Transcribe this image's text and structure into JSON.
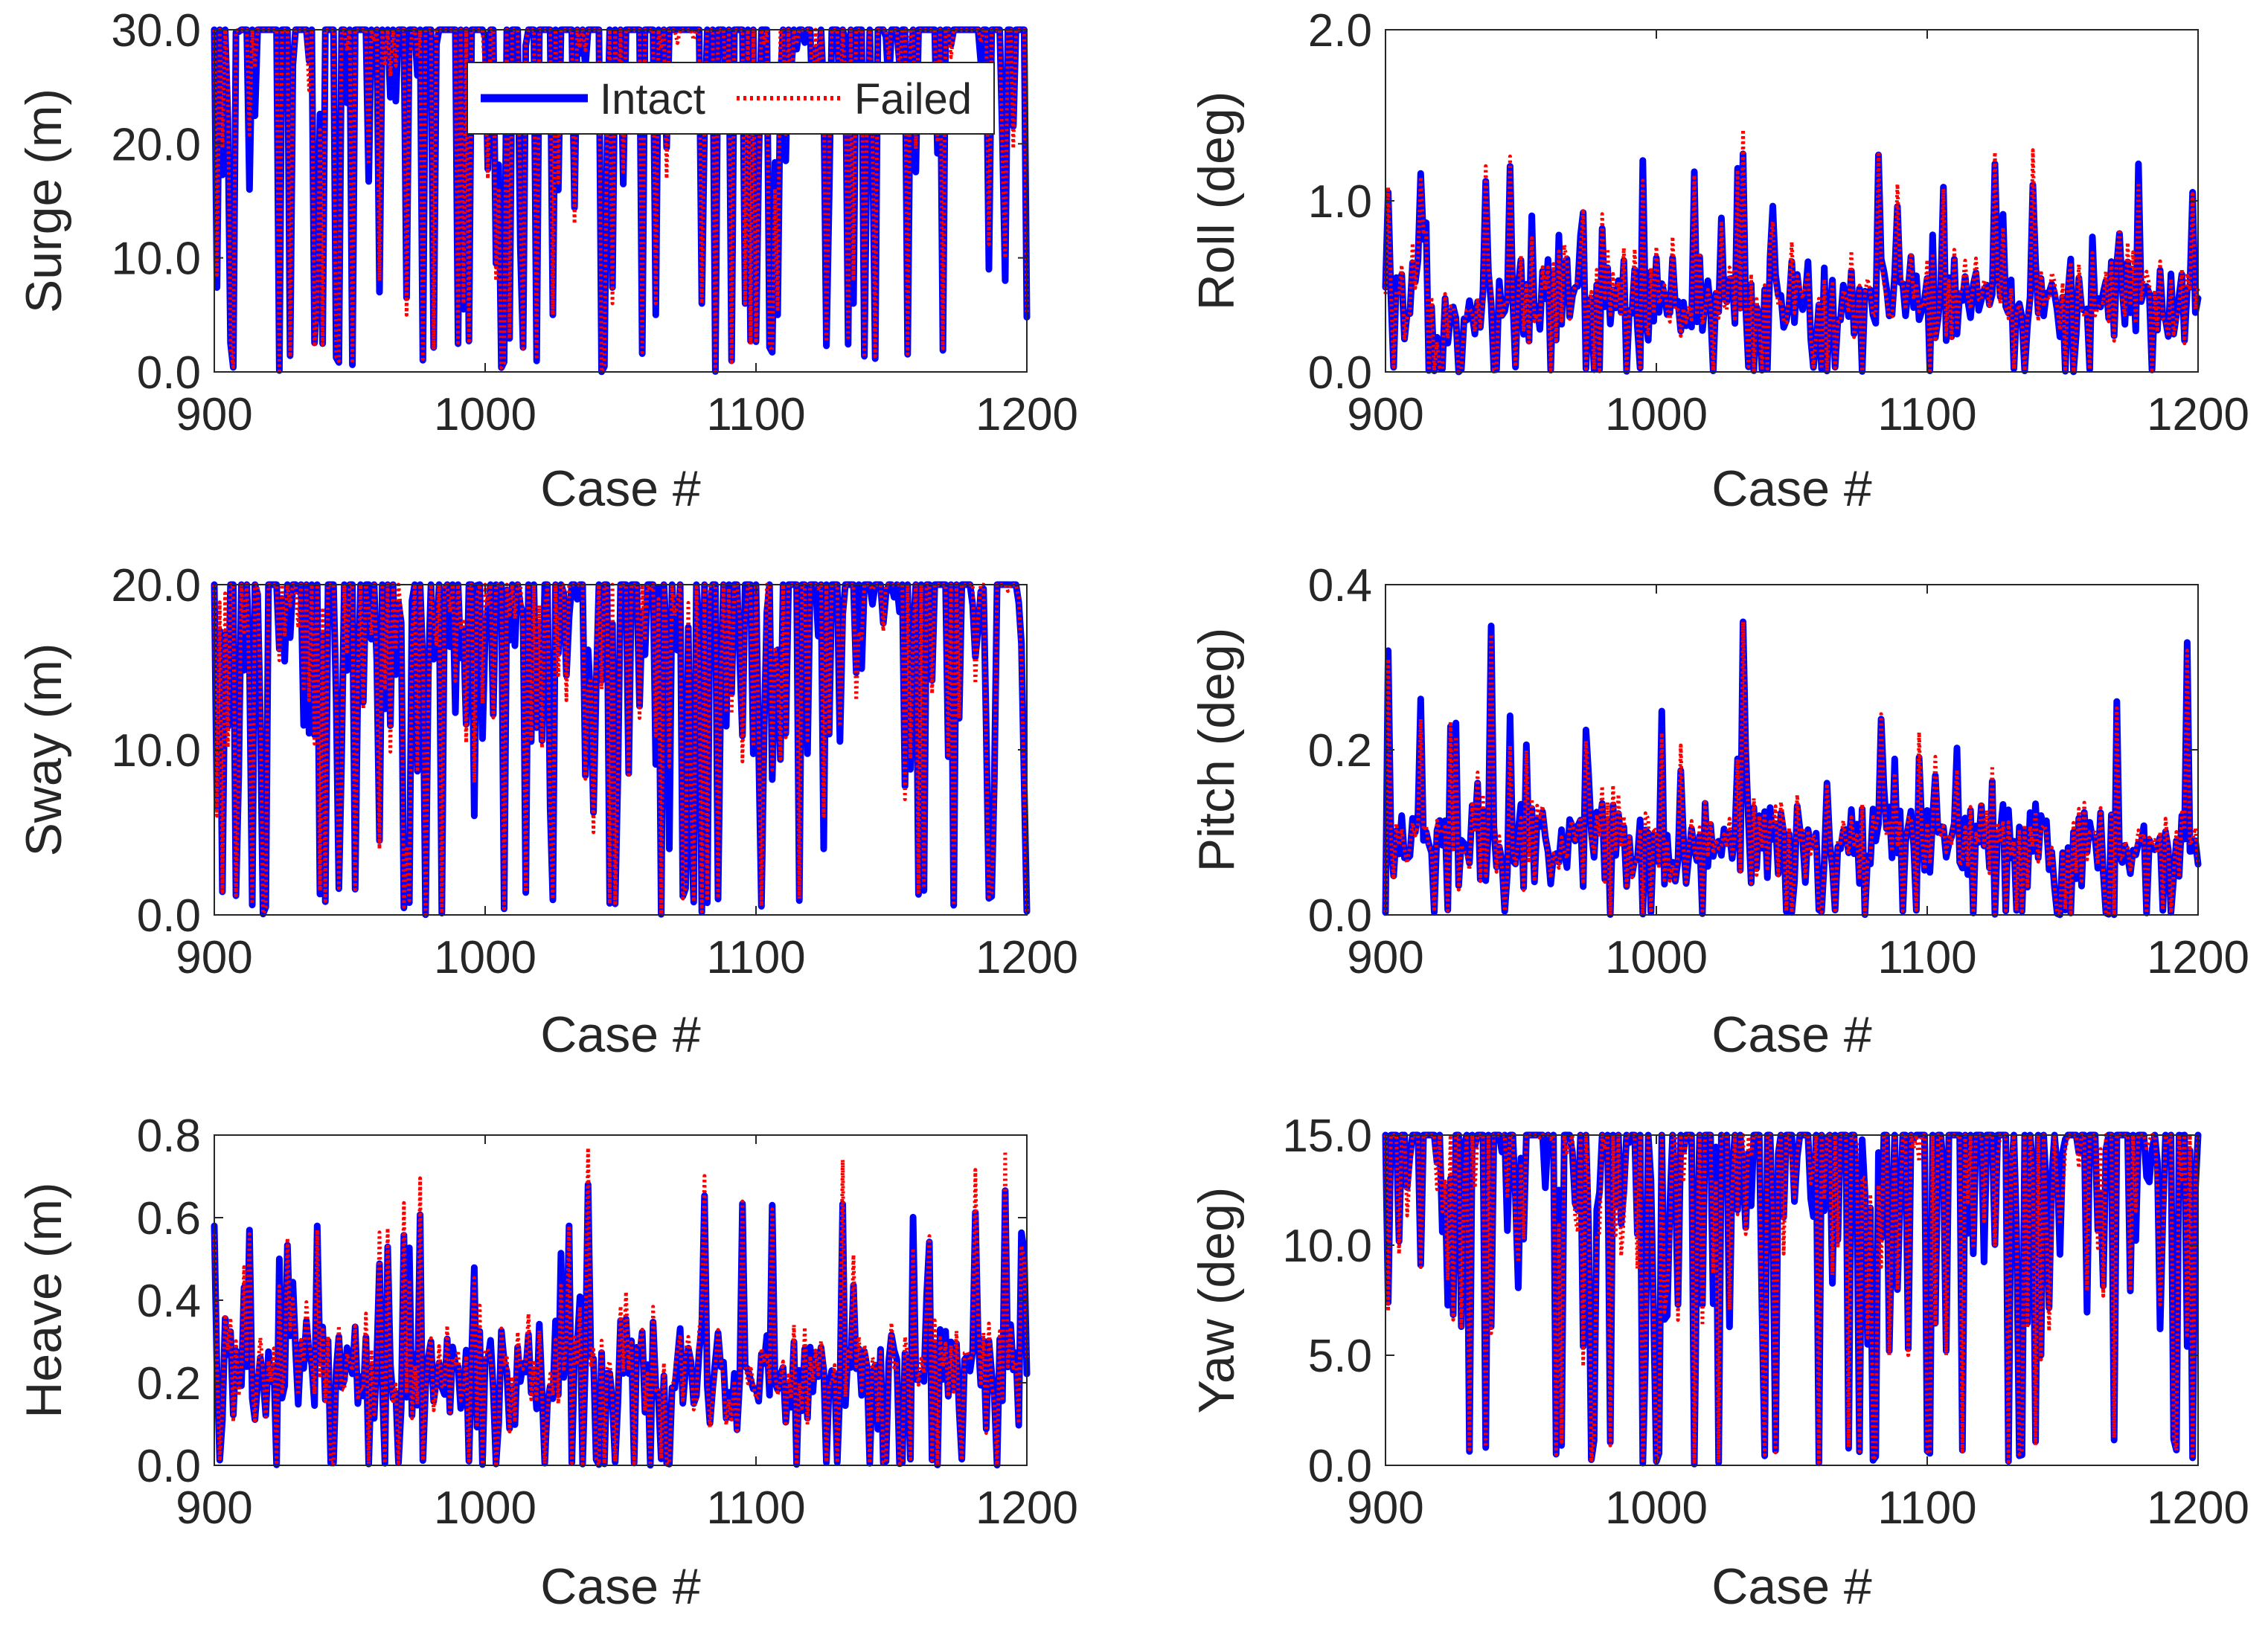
{
  "colors": {
    "intact": "#0000ff",
    "failed": "#ff0000",
    "axis": "#262626",
    "background": "#ffffff"
  },
  "legend": {
    "intact_label": "Intact",
    "failed_label": "Failed",
    "placement": "top-right of Surge panel"
  },
  "chart_data": [
    {
      "type": "line",
      "id": "surge",
      "ylabel": "Surge (m)",
      "xlabel": "Case #",
      "xlim": [
        900,
        1200
      ],
      "ylim": [
        0,
        30
      ],
      "xticks": [
        900,
        1000,
        1100,
        1200
      ],
      "xtick_labels": [
        "900",
        "1000",
        "1100",
        "1200"
      ],
      "yticks": [
        0,
        10,
        20,
        30
      ],
      "ytick_labels": [
        "0.0",
        "10.0",
        "20.0",
        "30.0"
      ],
      "gen": {
        "base": 2.0,
        "spikes": [
          [
            901,
            7.4,
            8.5
          ],
          [
            913,
            16.0,
            20.8
          ],
          [
            938,
            7.0,
            5.0
          ],
          [
            961,
            7.0,
            8.0
          ],
          [
            971,
            6.5,
            5.0
          ],
          [
            992,
            5.5,
            6.0
          ],
          [
            1004,
            9.5,
            8.0
          ],
          [
            1013,
            11.0,
            14.4
          ],
          [
            1025,
            5.0,
            5.0
          ],
          [
            1033,
            14.4,
            13.0
          ],
          [
            1047,
            7.4,
            6.0
          ],
          [
            1063,
            5.0,
            6.0
          ],
          [
            1080,
            6.0,
            6.0
          ],
          [
            1096,
            6.0,
            6.0
          ],
          [
            1108,
            5.0,
            5.5
          ],
          [
            1136,
            6.0,
            8.0
          ],
          [
            1186,
            9.0,
            11.2
          ],
          [
            1192,
            8.0,
            10.0
          ],
          [
            1200,
            4.8,
            5.0
          ]
        ]
      },
      "series": [
        {
          "name": "Intact",
          "style": "solid"
        },
        {
          "name": "Failed",
          "style": "dotted"
        }
      ]
    },
    {
      "type": "line",
      "id": "roll",
      "ylabel": "Roll (deg)",
      "xlabel": "Case #",
      "xlim": [
        900,
        1200
      ],
      "ylim": [
        0,
        2
      ],
      "xticks": [
        900,
        1000,
        1100,
        1200
      ],
      "xtick_labels": [
        "900",
        "1000",
        "1100",
        "1200"
      ],
      "yticks": [
        0,
        1,
        2
      ],
      "ytick_labels": [
        "0.0",
        "1.0",
        "2.0"
      ],
      "gen": {
        "base": 0.32,
        "spikes": [
          [
            901,
            1.05,
            1.08
          ],
          [
            913,
            1.16,
            1.14
          ],
          [
            1014,
            1.17,
            1.15
          ],
          [
            1030,
            1.19,
            1.18
          ],
          [
            1106,
            1.08,
            1.07
          ],
          [
            1198,
            1.05,
            1.04
          ],
          [
            1024,
            0.9,
            0.88
          ],
          [
            967,
            0.66,
            0.65
          ],
          [
            1083,
            0.66,
            0.66
          ],
          [
            1140,
            0.64,
            0.64
          ],
          [
            1153,
            0.66,
            0.64
          ]
        ]
      },
      "series": [
        {
          "name": "Intact",
          "style": "solid"
        },
        {
          "name": "Failed",
          "style": "dotted"
        }
      ]
    },
    {
      "type": "line",
      "id": "sway",
      "ylabel": "Sway (m)",
      "xlabel": "Case #",
      "xlim": [
        900,
        1200
      ],
      "ylim": [
        0,
        20
      ],
      "xticks": [
        900,
        1000,
        1100,
        1200
      ],
      "xtick_labels": [
        "900",
        "1000",
        "1100",
        "1200"
      ],
      "yticks": [
        0,
        10,
        20
      ],
      "ytick_labels": [
        "0.0",
        "10.0",
        "20.0"
      ],
      "gen": {
        "base": 1.6,
        "spikes": [
          [
            901,
            6.6,
            6.0
          ],
          [
            913,
            15.3,
            13.5
          ],
          [
            935,
            11.0,
            13.0
          ],
          [
            961,
            4.5,
            4.0
          ],
          [
            971,
            4.6,
            4.0
          ],
          [
            996,
            6.0,
            8.0
          ],
          [
            1014,
            18.2,
            17.5
          ],
          [
            1024,
            6.5,
            6.0
          ],
          [
            1030,
            14.5,
            13.0
          ],
          [
            1040,
            6.2,
            5.0
          ],
          [
            1068,
            4.0,
            9.0
          ],
          [
            1076,
            5.5,
            8.0
          ],
          [
            1106,
            8.2,
            8.8
          ],
          [
            1125,
            4.0,
            6.0
          ],
          [
            1155,
            7.8,
            7.0
          ],
          [
            1188,
            8.2,
            7.0
          ],
          [
            1199,
            8.0,
            7.5
          ]
        ]
      },
      "series": [
        {
          "name": "Intact",
          "style": "solid"
        },
        {
          "name": "Failed",
          "style": "dotted"
        }
      ]
    },
    {
      "type": "line",
      "id": "pitch",
      "ylabel": "Pitch (deg)",
      "xlabel": "Case #",
      "xlim": [
        900,
        1200
      ],
      "ylim": [
        0,
        0.4
      ],
      "xticks": [
        900,
        1000,
        1100,
        1200
      ],
      "xtick_labels": [
        "900",
        "1000",
        "1100",
        "1200"
      ],
      "yticks": [
        0,
        0.2,
        0.4
      ],
      "ytick_labels": [
        "0.0",
        "0.2",
        "0.4"
      ],
      "gen": {
        "base": 0.32,
        "spikes": [
          [
            901,
            0.32,
            0.31
          ],
          [
            1032,
            0.355,
            0.355
          ],
          [
            939,
            0.35,
            0.34
          ],
          [
            1196,
            0.33,
            0.32
          ]
        ]
      },
      "series": [
        {
          "name": "Intact",
          "style": "solid"
        },
        {
          "name": "Failed",
          "style": "dotted"
        }
      ]
    },
    {
      "type": "line",
      "id": "heave",
      "ylabel": "Heave (m)",
      "xlabel": "Case #",
      "xlim": [
        900,
        1200
      ],
      "ylim": [
        0,
        0.8
      ],
      "xticks": [
        900,
        1000,
        1100,
        1200
      ],
      "xtick_labels": [
        "900",
        "1000",
        "1100",
        "1200"
      ],
      "yticks": [
        0,
        0.2,
        0.4,
        0.6,
        0.8
      ],
      "ytick_labels": [
        "0.0",
        "0.2",
        "0.4",
        "0.6",
        "0.8"
      ],
      "gen": {
        "base": 0.42,
        "spikes": [
          [
            900,
            0.58,
            0.56
          ],
          [
            913,
            0.57,
            0.56
          ],
          [
            938,
            0.58,
            0.57
          ],
          [
            1031,
            0.58,
            0.58
          ],
          [
            1106,
            0.63,
            0.62
          ],
          [
            1199,
            0.52,
            0.5
          ]
        ]
      },
      "series": [
        {
          "name": "Intact",
          "style": "solid"
        },
        {
          "name": "Failed",
          "style": "dotted"
        }
      ]
    },
    {
      "type": "line",
      "id": "yaw",
      "ylabel": "Yaw (deg)",
      "xlabel": "Case #",
      "xlim": [
        900,
        1200
      ],
      "ylim": [
        0,
        15
      ],
      "xticks": [
        900,
        1000,
        1100,
        1200
      ],
      "xtick_labels": [
        "900",
        "1000",
        "1100",
        "1200"
      ],
      "yticks": [
        0,
        5,
        10,
        15
      ],
      "ytick_labels": [
        "0.0",
        "5.0",
        "10.0",
        "15.0"
      ],
      "gen": {
        "base": 1.6,
        "spikes": [
          [
            901,
            7.4,
            7.0
          ],
          [
            913,
            9.1,
            9.0
          ],
          [
            928,
            6.3,
            6.2
          ],
          [
            939,
            6.3,
            6.0
          ],
          [
            973,
            5.4,
            4.5
          ],
          [
            996,
            5.0,
            5.2
          ],
          [
            1004,
            6.8,
            8.0
          ],
          [
            1008,
            7.3,
            6.6
          ],
          [
            1015,
            10.0,
            9.8
          ],
          [
            1030,
            11.6,
            11.4
          ],
          [
            1033,
            10.8,
            10.5
          ],
          [
            1078,
            5.5,
            5.8
          ],
          [
            1086,
            5.2,
            5.0
          ],
          [
            1093,
            5.3,
            5.0
          ],
          [
            1107,
            5.2,
            5.0
          ],
          [
            1142,
            5.0,
            4.8
          ],
          [
            1186,
            6.2,
            7.3
          ],
          [
            1196,
            5.4,
            5.8
          ]
        ]
      },
      "series": [
        {
          "name": "Intact",
          "style": "solid"
        },
        {
          "name": "Failed",
          "style": "dotted"
        }
      ]
    }
  ]
}
